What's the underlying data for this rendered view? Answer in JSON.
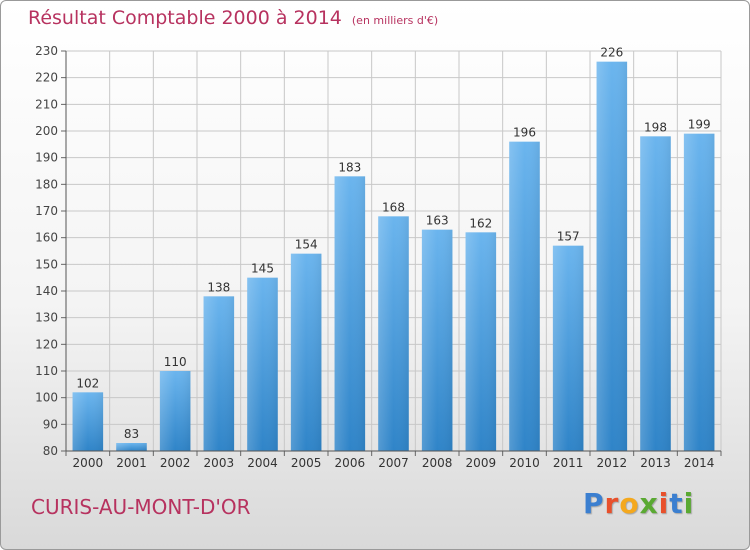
{
  "title": "Résultat Comptable 2000 à 2014",
  "title_unit": "(en milliers d'€)",
  "commune": "CURIS-AU-MONT-D'OR",
  "brand": {
    "text": "Proxiti",
    "letter_colors": [
      "#3b7fd0",
      "#e8502b",
      "#f4a81d",
      "#5aa932",
      "#e8502b",
      "#3b7fd0",
      "#5aa932"
    ]
  },
  "colors": {
    "bar_light": "#6bb5ee",
    "bar_dark": "#2f84c8",
    "title": "#b7325f",
    "grid": "#c8c8c8"
  },
  "chart_data": {
    "type": "bar",
    "title": "Résultat Comptable 2000 à 2014",
    "categories": [
      "2000",
      "2001",
      "2002",
      "2003",
      "2004",
      "2005",
      "2006",
      "2007",
      "2008",
      "2009",
      "2010",
      "2011",
      "2012",
      "2013",
      "2014"
    ],
    "values": [
      102,
      83,
      110,
      138,
      145,
      154,
      183,
      168,
      163,
      162,
      196,
      157,
      226,
      198,
      199
    ],
    "ylim": [
      80,
      230
    ],
    "yticks": [
      80,
      90,
      100,
      110,
      120,
      130,
      140,
      150,
      160,
      170,
      180,
      190,
      200,
      210,
      220,
      230
    ],
    "grid": true,
    "data_labels": true
  }
}
